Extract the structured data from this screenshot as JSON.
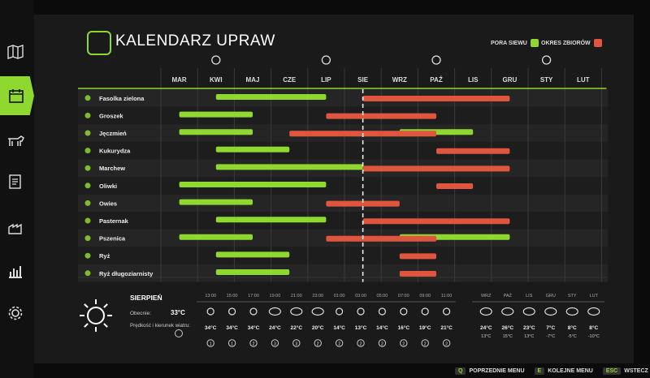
{
  "title": "KALENDARZ UPRAW",
  "legend": {
    "sowing_label": "PORA SIEWU",
    "harvest_label": "OKRES ZBIORÓW",
    "sowing_color": "#8ed82f",
    "harvest_color": "#e0553d"
  },
  "months": [
    "MAR",
    "KWI",
    "MAJ",
    "CZE",
    "LIP",
    "SIE",
    "WRZ",
    "PAŹ",
    "LIS",
    "GRU",
    "STY",
    "LUT"
  ],
  "season_icons": [
    "flower-icon",
    "sun-icon",
    "leaves-icon",
    "snowflake-icon"
  ],
  "crops": [
    {
      "name": "Fasolka zielona",
      "sow": [
        [
          1,
          4
        ]
      ],
      "harvest": [
        [
          5,
          9
        ]
      ]
    },
    {
      "name": "Groszek",
      "sow": [
        [
          0,
          2
        ]
      ],
      "harvest": [
        [
          4,
          7
        ]
      ]
    },
    {
      "name": "Jęczmień",
      "sow": [
        [
          0,
          2
        ],
        [
          6,
          8
        ]
      ],
      "harvest": [
        [
          3,
          7
        ]
      ]
    },
    {
      "name": "Kukurydza",
      "sow": [
        [
          1,
          3
        ]
      ],
      "harvest": [
        [
          7,
          9
        ]
      ]
    },
    {
      "name": "Marchew",
      "sow": [
        [
          1,
          5
        ]
      ],
      "harvest": [
        [
          5,
          9
        ]
      ]
    },
    {
      "name": "Oliwki",
      "sow": [
        [
          0,
          4
        ]
      ],
      "harvest": [
        [
          7,
          8
        ]
      ]
    },
    {
      "name": "Owies",
      "sow": [
        [
          0,
          2
        ]
      ],
      "harvest": [
        [
          4,
          6
        ]
      ]
    },
    {
      "name": "Pasternak",
      "sow": [
        [
          1,
          4
        ]
      ],
      "harvest": [
        [
          5,
          9
        ]
      ]
    },
    {
      "name": "Pszenica",
      "sow": [
        [
          0,
          2
        ],
        [
          6,
          9
        ]
      ],
      "harvest": [
        [
          4,
          7
        ]
      ]
    },
    {
      "name": "Ryż",
      "sow": [
        [
          1,
          3
        ]
      ],
      "harvest": [
        [
          6,
          7
        ]
      ]
    },
    {
      "name": "Ryż długoziarnisty",
      "sow": [
        [
          1,
          3
        ]
      ],
      "harvest": [
        [
          6,
          7
        ]
      ]
    }
  ],
  "current_month_marker": "SIE",
  "weather": {
    "month": "SIERPIEŃ",
    "temp_label": "Obecnie:",
    "temp_value": "33°C",
    "wind_label": "Prędkość i kierunek wiatru:",
    "hourly": [
      {
        "time": "13:00",
        "icon": "sun-icon",
        "temp": "34°C",
        "wind": "1"
      },
      {
        "time": "15:00",
        "icon": "sun-icon",
        "temp": "34°C",
        "wind": "1"
      },
      {
        "time": "17:00",
        "icon": "sun-icon",
        "temp": "34°C",
        "wind": "2"
      },
      {
        "time": "19:00",
        "icon": "cloud-icon",
        "temp": "24°C",
        "wind": "3"
      },
      {
        "time": "21:00",
        "icon": "cloud-icon",
        "temp": "22°C",
        "wind": "3"
      },
      {
        "time": "23:00",
        "icon": "cloud-icon",
        "temp": "20°C",
        "wind": "2"
      },
      {
        "time": "01:00",
        "icon": "sun-icon",
        "temp": "14°C",
        "wind": "2"
      },
      {
        "time": "03:00",
        "icon": "sun-icon",
        "temp": "13°C",
        "wind": "2"
      },
      {
        "time": "05:00",
        "icon": "sun-icon",
        "temp": "14°C",
        "wind": "2"
      },
      {
        "time": "07:00",
        "icon": "sun-icon",
        "temp": "16°C",
        "wind": "2"
      },
      {
        "time": "09:00",
        "icon": "sun-icon",
        "temp": "19°C",
        "wind": "2"
      },
      {
        "time": "11:00",
        "icon": "sun-icon",
        "temp": "21°C",
        "wind": "2"
      }
    ],
    "monthly": [
      {
        "month": "WRZ",
        "icon": "rain-icon",
        "high": "24°C",
        "low": "13°C"
      },
      {
        "month": "PAŹ",
        "icon": "rain-icon",
        "high": "26°C",
        "low": "15°C"
      },
      {
        "month": "LIS",
        "icon": "partly-cloudy-icon",
        "high": "23°C",
        "low": "13°C"
      },
      {
        "month": "GRU",
        "icon": "snow-cloud-icon",
        "high": "7°C",
        "low": "-7°C"
      },
      {
        "month": "STY",
        "icon": "partly-cloudy-icon",
        "high": "8°C",
        "low": "-5°C"
      },
      {
        "month": "LUT",
        "icon": "snow-cloud-icon",
        "high": "8°C",
        "low": "-10°C"
      }
    ]
  },
  "footer": [
    {
      "key": "Q",
      "label": "POPRZEDNIE MENU"
    },
    {
      "key": "E",
      "label": "KOLEJNE MENU"
    },
    {
      "key": "ESC",
      "label": "WSTECZ"
    }
  ]
}
